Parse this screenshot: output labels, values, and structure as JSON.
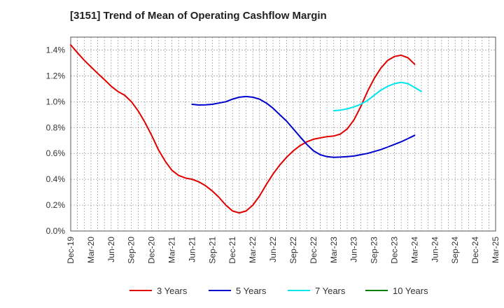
{
  "chart_data": {
    "type": "line",
    "title": "[3151]  Trend of Mean of Operating Cashflow Margin",
    "xlabel": "",
    "ylabel": "",
    "x_categories": [
      "Dec-19",
      "Mar-20",
      "Jun-20",
      "Sep-20",
      "Dec-20",
      "Mar-21",
      "Jun-21",
      "Sep-21",
      "Dec-21",
      "Mar-22",
      "Jun-22",
      "Sep-22",
      "Dec-22",
      "Mar-23",
      "Jun-23",
      "Sep-23",
      "Dec-23",
      "Mar-24",
      "Jun-24",
      "Sep-24",
      "Dec-24",
      "Mar-25"
    ],
    "ylim": [
      0,
      1.5
    ],
    "y_ticks": [
      0,
      0.2,
      0.4,
      0.6,
      0.8,
      1.0,
      1.2,
      1.4
    ],
    "y_tick_labels": [
      "0.0%",
      "0.2%",
      "0.4%",
      "0.6%",
      "0.8%",
      "1.0%",
      "1.2%",
      "1.4%"
    ],
    "grid": true,
    "legend_position": "bottom",
    "series": [
      {
        "name": "3 Years",
        "color": "#e00000",
        "points": [
          [
            0,
            1.44
          ],
          [
            0.33,
            1.38
          ],
          [
            0.67,
            1.32
          ],
          [
            1,
            1.27
          ],
          [
            1.33,
            1.22
          ],
          [
            1.67,
            1.17
          ],
          [
            2,
            1.12
          ],
          [
            2.33,
            1.08
          ],
          [
            2.67,
            1.05
          ],
          [
            3,
            1.0
          ],
          [
            3.33,
            0.93
          ],
          [
            3.67,
            0.84
          ],
          [
            4,
            0.74
          ],
          [
            4.33,
            0.63
          ],
          [
            4.67,
            0.54
          ],
          [
            5,
            0.47
          ],
          [
            5.33,
            0.43
          ],
          [
            5.67,
            0.41
          ],
          [
            6,
            0.4
          ],
          [
            6.33,
            0.38
          ],
          [
            6.67,
            0.35
          ],
          [
            7,
            0.31
          ],
          [
            7.33,
            0.26
          ],
          [
            7.67,
            0.2
          ],
          [
            8,
            0.155
          ],
          [
            8.33,
            0.14
          ],
          [
            8.67,
            0.155
          ],
          [
            9,
            0.2
          ],
          [
            9.33,
            0.27
          ],
          [
            9.67,
            0.36
          ],
          [
            10,
            0.44
          ],
          [
            10.33,
            0.51
          ],
          [
            10.67,
            0.57
          ],
          [
            11,
            0.62
          ],
          [
            11.33,
            0.66
          ],
          [
            11.67,
            0.69
          ],
          [
            12,
            0.71
          ],
          [
            12.33,
            0.72
          ],
          [
            12.67,
            0.73
          ],
          [
            13,
            0.735
          ],
          [
            13.33,
            0.75
          ],
          [
            13.67,
            0.79
          ],
          [
            14,
            0.86
          ],
          [
            14.33,
            0.96
          ],
          [
            14.67,
            1.08
          ],
          [
            15,
            1.18
          ],
          [
            15.33,
            1.26
          ],
          [
            15.67,
            1.32
          ],
          [
            16,
            1.35
          ],
          [
            16.33,
            1.36
          ],
          [
            16.67,
            1.34
          ],
          [
            17,
            1.29
          ]
        ]
      },
      {
        "name": "5 Years",
        "color": "#0000cc",
        "points": [
          [
            6,
            0.98
          ],
          [
            6.33,
            0.975
          ],
          [
            6.67,
            0.976
          ],
          [
            7,
            0.98
          ],
          [
            7.33,
            0.99
          ],
          [
            7.67,
            1.0
          ],
          [
            8,
            1.02
          ],
          [
            8.33,
            1.035
          ],
          [
            8.67,
            1.04
          ],
          [
            9,
            1.035
          ],
          [
            9.33,
            1.02
          ],
          [
            9.67,
            0.99
          ],
          [
            10,
            0.95
          ],
          [
            10.33,
            0.9
          ],
          [
            10.67,
            0.85
          ],
          [
            11,
            0.79
          ],
          [
            11.33,
            0.73
          ],
          [
            11.67,
            0.67
          ],
          [
            12,
            0.62
          ],
          [
            12.33,
            0.59
          ],
          [
            12.67,
            0.575
          ],
          [
            13,
            0.57
          ],
          [
            13.33,
            0.572
          ],
          [
            13.67,
            0.575
          ],
          [
            14,
            0.58
          ],
          [
            14.33,
            0.59
          ],
          [
            14.67,
            0.6
          ],
          [
            15,
            0.615
          ],
          [
            15.33,
            0.63
          ],
          [
            15.67,
            0.65
          ],
          [
            16,
            0.67
          ],
          [
            16.33,
            0.69
          ],
          [
            16.67,
            0.715
          ],
          [
            17,
            0.74
          ]
        ]
      },
      {
        "name": "7 Years",
        "color": "#00e5ee",
        "points": [
          [
            13,
            0.93
          ],
          [
            13.33,
            0.935
          ],
          [
            13.67,
            0.945
          ],
          [
            14,
            0.96
          ],
          [
            14.33,
            0.98
          ],
          [
            14.67,
            1.01
          ],
          [
            15,
            1.05
          ],
          [
            15.33,
            1.09
          ],
          [
            15.67,
            1.12
          ],
          [
            16,
            1.14
          ],
          [
            16.33,
            1.15
          ],
          [
            16.67,
            1.14
          ],
          [
            17,
            1.11
          ],
          [
            17.33,
            1.08
          ]
        ]
      },
      {
        "name": "10 Years",
        "color": "#008000",
        "points": []
      }
    ]
  }
}
